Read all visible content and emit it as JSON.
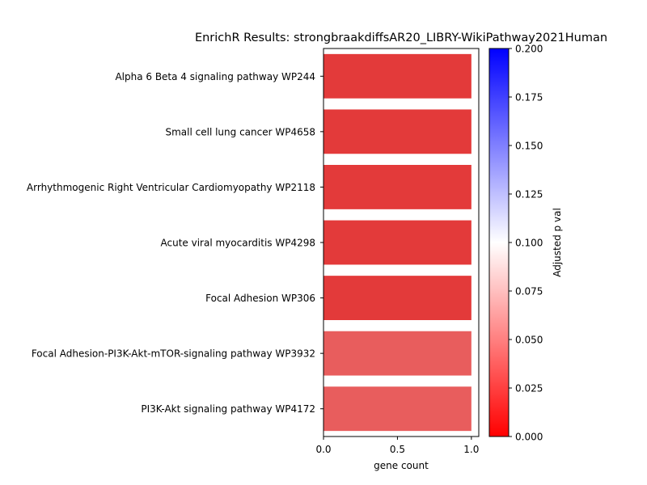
{
  "chart_data": {
    "type": "bar",
    "orientation": "horizontal",
    "title": "EnrichR Results: strongbraakdiffsAR20_LIBRY-WikiPathway2021Human",
    "xlabel": "gene count",
    "ylabel": "",
    "xlim": [
      0,
      1.05
    ],
    "x_ticks": [
      "0.0",
      "0.5",
      "1.0"
    ],
    "x_tick_values": [
      0,
      0.5,
      1.0
    ],
    "categories": [
      "Alpha 6 Beta 4 signaling pathway WP244",
      "Small cell lung cancer WP4658",
      "Arrhythmogenic Right Ventricular Cardiomyopathy WP2118",
      "Acute viral myocarditis WP4298",
      "Focal Adhesion WP306",
      "Focal Adhesion-PI3K-Akt-mTOR-signaling pathway WP3932",
      "PI3K-Akt signaling pathway WP4172"
    ],
    "values": [
      1,
      1,
      1,
      1,
      1,
      1,
      1
    ],
    "adjusted_p": [
      0.018,
      0.018,
      0.018,
      0.018,
      0.018,
      0.04,
      0.04
    ],
    "bar_colors": [
      "#e33a3a",
      "#e33a3a",
      "#e33a3a",
      "#e33a3a",
      "#e33a3a",
      "#e85d5d",
      "#e85d5d"
    ],
    "colorbar": {
      "label": "Adjusted p val",
      "range": [
        0,
        0.2
      ],
      "ticks": [
        "0.000",
        "0.025",
        "0.050",
        "0.075",
        "0.100",
        "0.125",
        "0.150",
        "0.175",
        "0.200"
      ],
      "tick_values": [
        0,
        0.025,
        0.05,
        0.075,
        0.1,
        0.125,
        0.15,
        0.175,
        0.2
      ],
      "colors": [
        "#ff0000",
        "#ffffff",
        "#0000ff"
      ]
    }
  }
}
